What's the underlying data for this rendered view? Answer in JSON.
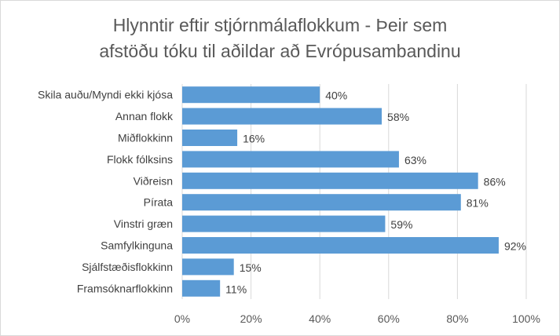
{
  "chart_data": {
    "type": "bar",
    "orientation": "horizontal",
    "title_lines": [
      "Hlynntir eftir stjórnmálaflokkum - Þeir sem",
      "afstöðu tóku til aðildar að Evrópusambandinu"
    ],
    "categories": [
      "Skila auðu/Myndi ekki kjósa",
      "Annan flokk",
      "Miðflokkinn",
      "Flokk fólksins",
      "Viðreisn",
      "Pírata",
      "Vinstri græn",
      "Samfylkinguna",
      "Sjálfstæðisflokkinn",
      "Framsóknarflokkinn"
    ],
    "values": [
      40,
      58,
      16,
      63,
      86,
      81,
      59,
      92,
      15,
      11
    ],
    "data_labels": [
      "40%",
      "58%",
      "16%",
      "63%",
      "86%",
      "81%",
      "59%",
      "92%",
      "15%",
      "11%"
    ],
    "xlim": [
      0,
      100
    ],
    "x_ticks": [
      "0%",
      "20%",
      "40%",
      "60%",
      "80%",
      "100%"
    ],
    "grid": "vertical",
    "bar_color": "#5b9bd5",
    "gridline_color": "#d9d9d9"
  }
}
